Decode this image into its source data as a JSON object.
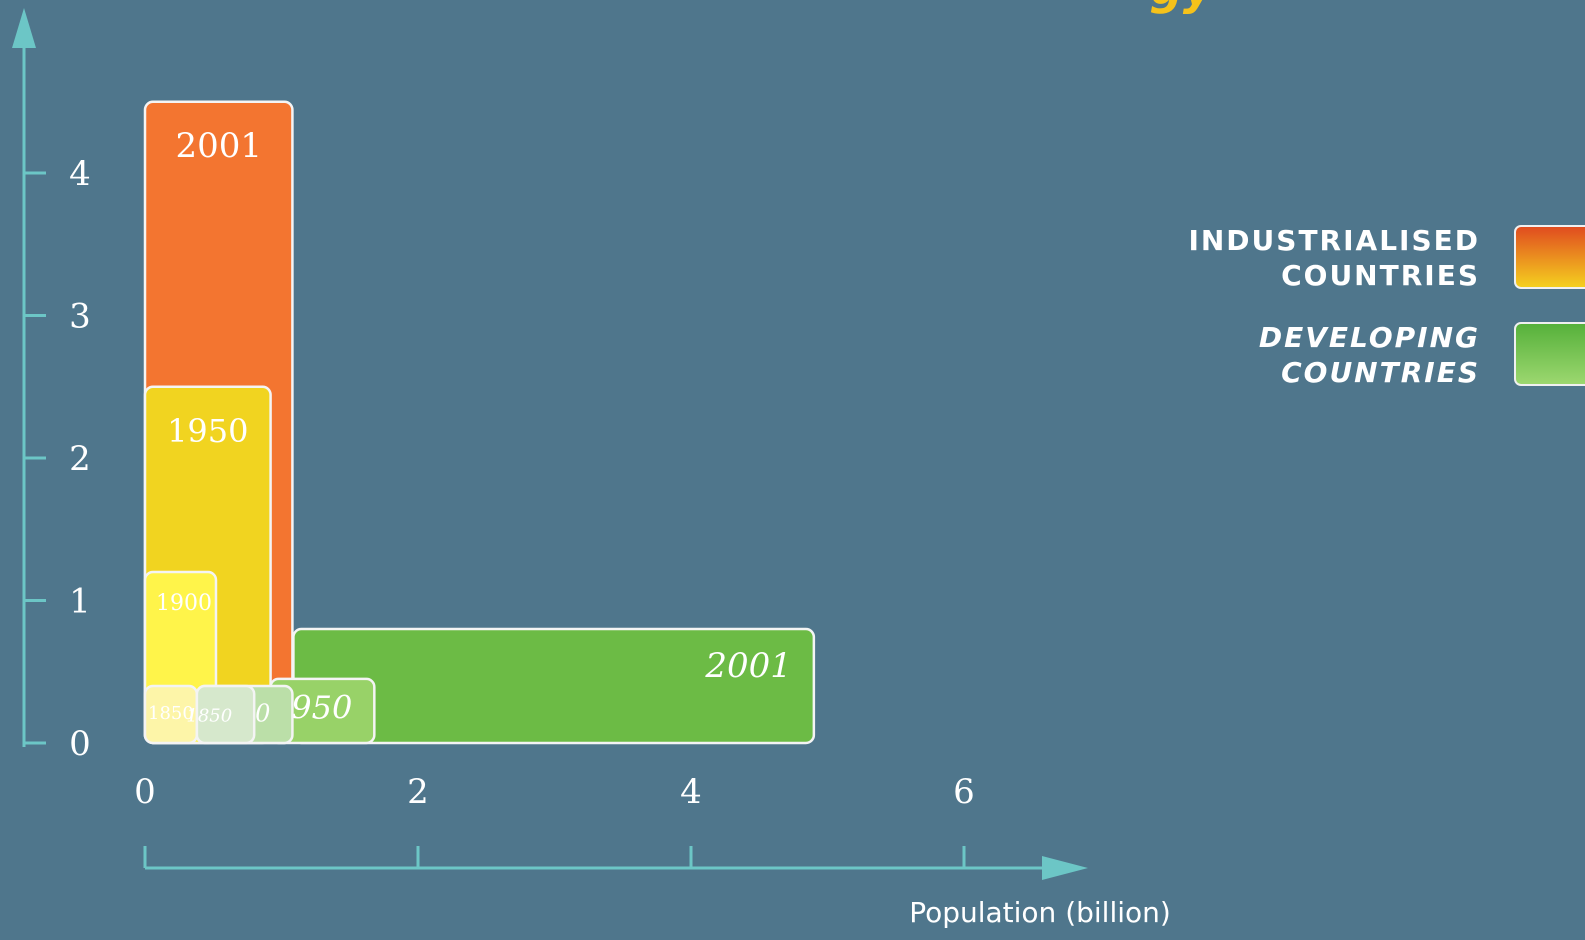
{
  "chart_data": {
    "type": "bar",
    "title": "",
    "xlabel": "Population (billion)",
    "ylabel": "",
    "xlim": [
      0,
      6
    ],
    "ylim": [
      0,
      4.5
    ],
    "x_ticks": [
      "0",
      "2",
      "4",
      "6"
    ],
    "y_ticks": [
      "0",
      "1",
      "2",
      "3",
      "4"
    ],
    "grid": false,
    "legend_position": "right",
    "series": [
      {
        "name": "INDUSTRIALISED COUNTRIES",
        "color": "#f37530",
        "bars": [
          {
            "label": "2001",
            "population": 1.08,
            "value": 4.5
          },
          {
            "label": "1950",
            "population": 0.92,
            "value": 2.5
          },
          {
            "label": "1900",
            "population": 0.52,
            "value": 1.2
          },
          {
            "label": "1850",
            "population": 0.38,
            "value": 0.4
          }
        ]
      },
      {
        "name": "DEVELOPING COUNTRIES",
        "color": "#6cbb45",
        "bars": [
          {
            "label": "2001",
            "population": 4.9,
            "value": 0.8
          },
          {
            "label": "1950",
            "population": 1.68,
            "value": 0.45
          },
          {
            "label": "1900",
            "population": 1.08,
            "value": 0.4
          },
          {
            "label": "1850",
            "population": 0.8,
            "value": 0.4
          }
        ]
      }
    ],
    "legend": [
      {
        "line1": "INDUSTRIALISED",
        "line2": "COUNTRIES"
      },
      {
        "line1": "DEVELOPING",
        "line2": "COUNTRIES"
      }
    ],
    "title_fragment": "gy"
  }
}
